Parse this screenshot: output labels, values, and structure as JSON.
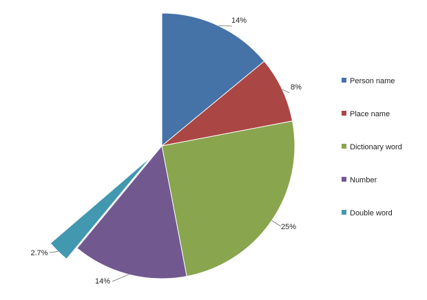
{
  "chart_data": {
    "type": "pie",
    "legend_position": "right",
    "series": [
      {
        "name": "Person name",
        "value": 14,
        "label": "14%",
        "color": "#4572A7",
        "exploded": false
      },
      {
        "name": "Place name",
        "value": 8,
        "label": "8%",
        "color": "#AA4643",
        "exploded": false
      },
      {
        "name": "Dictionary word",
        "value": 25,
        "label": "25%",
        "color": "#89A54E",
        "exploded": false
      },
      {
        "name": "Number",
        "value": 14,
        "label": "14%",
        "color": "#71588F",
        "exploded": false
      },
      {
        "name": "Double word",
        "value": 2.7,
        "label": "2.7%",
        "color": "#4198AF",
        "exploded": true
      }
    ]
  }
}
